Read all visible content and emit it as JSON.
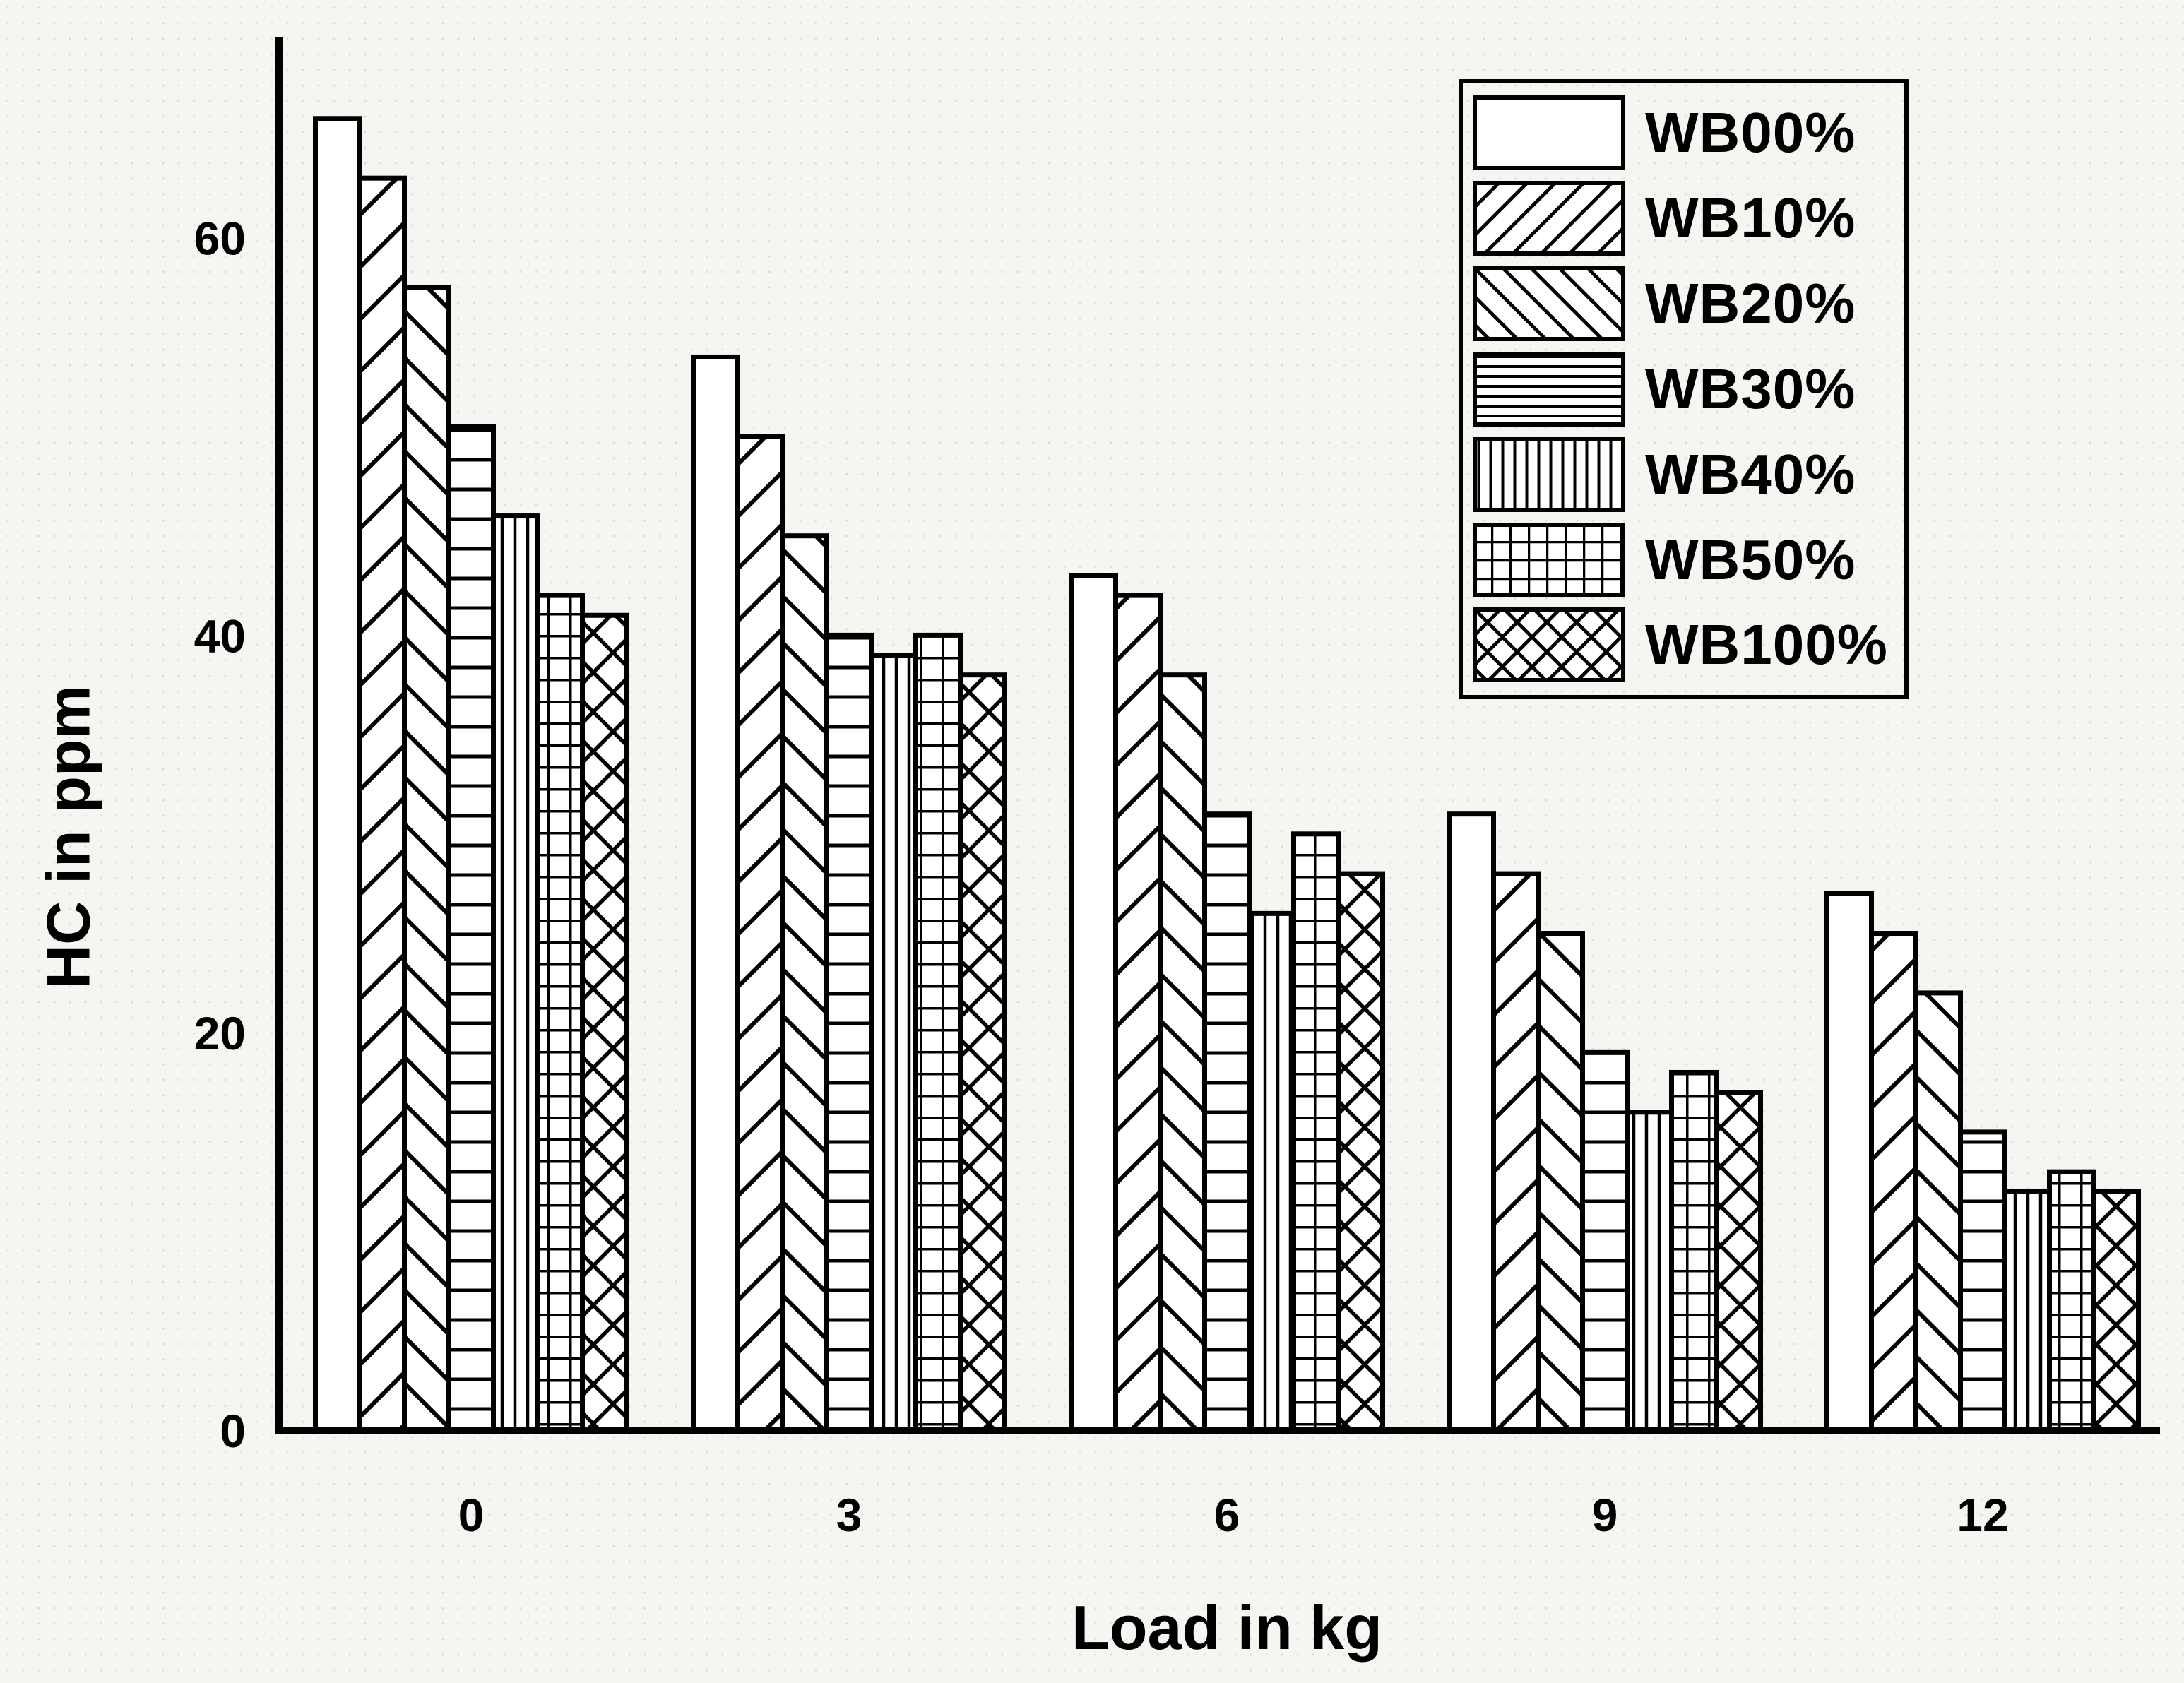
{
  "chart_data": {
    "type": "bar",
    "title": "",
    "xlabel": "Load in kg",
    "ylabel": "HC in ppm",
    "categories": [
      "0",
      "3",
      "6",
      "9",
      "12"
    ],
    "yticks": [
      "0",
      "20",
      "40",
      "60"
    ],
    "ylim": [
      0,
      71
    ],
    "grid": false,
    "legend_position": "top-right",
    "bar_fill": "#ffffff",
    "ink_color": "#000000",
    "series": [
      {
        "name": "WB00%",
        "pattern": "none",
        "values": [
          66,
          54,
          43,
          31,
          27
        ]
      },
      {
        "name": "WB10%",
        "pattern": "diag-up",
        "values": [
          63,
          50,
          42,
          28,
          25
        ]
      },
      {
        "name": "WB20%",
        "pattern": "diag-down",
        "values": [
          57.5,
          45,
          38,
          25,
          22
        ]
      },
      {
        "name": "WB30%",
        "pattern": "horizontal",
        "values": [
          50.5,
          40,
          31,
          19,
          15
        ]
      },
      {
        "name": "WB40%",
        "pattern": "vertical",
        "values": [
          46,
          39,
          26,
          16,
          12
        ]
      },
      {
        "name": "WB50%",
        "pattern": "grid",
        "values": [
          42,
          40,
          30,
          18,
          13
        ]
      },
      {
        "name": "WB100%",
        "pattern": "crosshatch",
        "values": [
          41,
          38,
          28,
          17,
          12
        ]
      }
    ]
  }
}
